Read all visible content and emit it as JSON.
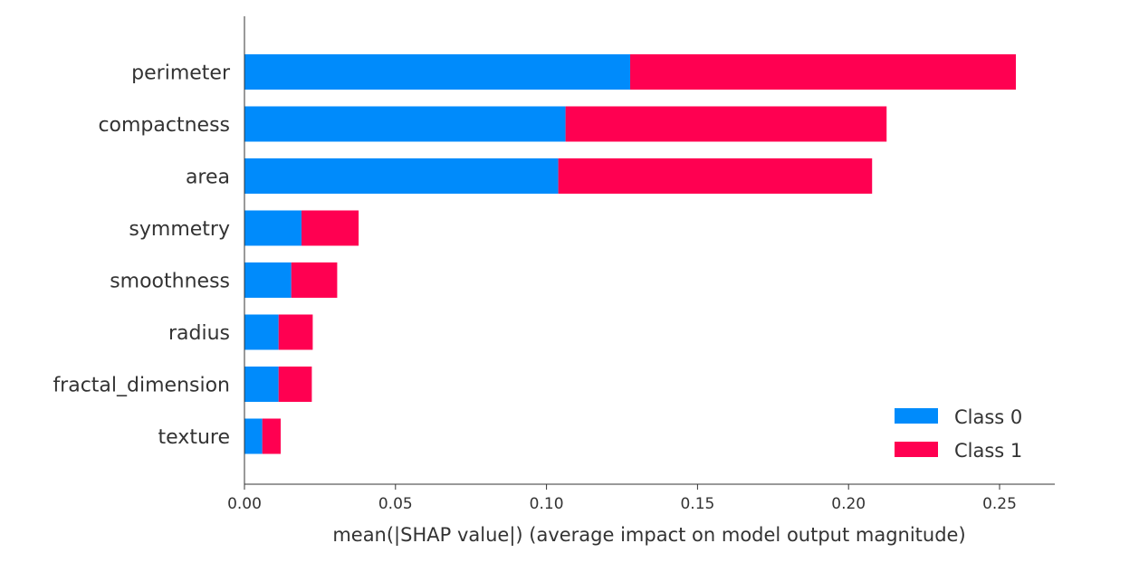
{
  "chart_data": {
    "type": "bar",
    "orientation": "horizontal",
    "stacked": true,
    "title": "",
    "xlabel": "mean(|SHAP value|) (average impact on model output magnitude)",
    "ylabel": "",
    "xlim": [
      0,
      0.27
    ],
    "xticks": [
      0.0,
      0.05,
      0.1,
      0.15,
      0.2,
      0.25
    ],
    "xtick_labels": [
      "0.00",
      "0.05",
      "0.10",
      "0.15",
      "0.20",
      "0.25"
    ],
    "categories": [
      "perimeter",
      "compactness",
      "area",
      "symmetry",
      "smoothness",
      "radius",
      "fractal_dimension",
      "texture"
    ],
    "series": [
      {
        "name": "Class 0",
        "color": "#008bfb",
        "values": [
          0.1277,
          0.1063,
          0.1039,
          0.0189,
          0.0155,
          0.0113,
          0.0113,
          0.0059
        ]
      },
      {
        "name": "Class 1",
        "color": "#ff0051",
        "values": [
          0.1277,
          0.1063,
          0.1039,
          0.0189,
          0.0152,
          0.0113,
          0.011,
          0.0061
        ]
      }
    ],
    "legend": {
      "position": "lower-right",
      "entries": [
        "Class 0",
        "Class 1"
      ]
    },
    "grid": false
  }
}
